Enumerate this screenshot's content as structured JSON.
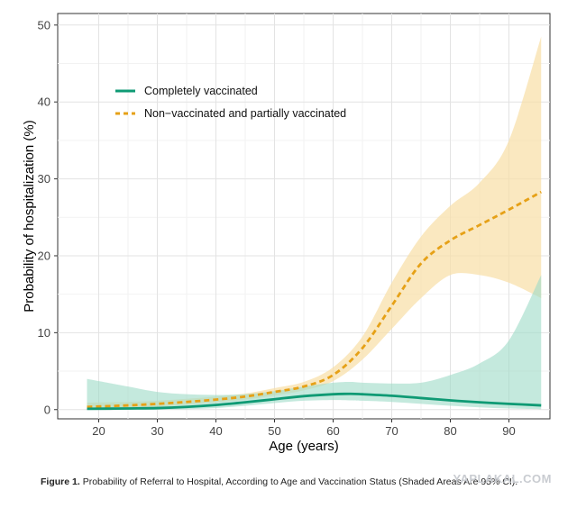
{
  "chart_data": {
    "type": "line",
    "xlabel": "Age (years)",
    "ylabel": "Probability of hospitalization (%)",
    "xlim": [
      13,
      97
    ],
    "ylim": [
      -1.2,
      51.5
    ],
    "x_ticks": [
      20,
      30,
      40,
      50,
      60,
      70,
      80,
      90
    ],
    "y_ticks": [
      0,
      10,
      20,
      30,
      40,
      50
    ],
    "grid": true,
    "legend_position": "top-left",
    "series": [
      {
        "name": "Completely vaccinated",
        "style": "solid",
        "color": "#0f9a74",
        "band_color": "#9fdcc8",
        "x": [
          18,
          25,
          30,
          35,
          40,
          45,
          50,
          55,
          60,
          63,
          65,
          70,
          75,
          80,
          85,
          90,
          95.5
        ],
        "y": [
          0.1,
          0.15,
          0.2,
          0.35,
          0.6,
          0.95,
          1.35,
          1.75,
          2.0,
          2.05,
          2.0,
          1.8,
          1.5,
          1.2,
          0.95,
          0.75,
          0.55
        ],
        "lower": [
          0,
          0,
          0,
          0.05,
          0.2,
          0.5,
          0.85,
          1.15,
          1.25,
          1.2,
          1.15,
          1.0,
          0.75,
          0.5,
          0.3,
          0.15,
          0.05
        ],
        "upper": [
          4.0,
          3.0,
          2.3,
          2.0,
          1.9,
          2.0,
          2.4,
          3.0,
          3.5,
          3.6,
          3.5,
          3.4,
          3.5,
          4.5,
          6.0,
          9.0,
          17.5
        ]
      },
      {
        "name": "Non−vaccinated and partially vaccinated",
        "style": "dashed",
        "color": "#e6a117",
        "band_color": "#f8dfa8",
        "x": [
          18,
          25,
          30,
          35,
          40,
          45,
          50,
          55,
          60,
          65,
          70,
          75,
          80,
          85,
          90,
          95.5
        ],
        "y": [
          0.35,
          0.55,
          0.75,
          1.0,
          1.3,
          1.7,
          2.3,
          3.0,
          4.5,
          8.0,
          13.5,
          19.0,
          22.0,
          24.0,
          26.0,
          28.3
        ],
        "lower": [
          0.05,
          0.2,
          0.4,
          0.65,
          0.95,
          1.3,
          1.85,
          2.5,
          3.7,
          6.5,
          10.5,
          14.5,
          17.5,
          17.5,
          16.5,
          14.5
        ],
        "upper": [
          0.9,
          1.0,
          1.15,
          1.4,
          1.7,
          2.1,
          2.8,
          3.6,
          5.5,
          9.5,
          16.5,
          22.5,
          26.5,
          29.5,
          35.0,
          48.5
        ]
      }
    ]
  },
  "caption": {
    "label": "Figure 1.",
    "text": "Probability of Referral to Hospital, According to Age and Vaccination Status (Shaded Areas Are 95% CI)."
  },
  "watermark": "YAPLAKAL.COM"
}
